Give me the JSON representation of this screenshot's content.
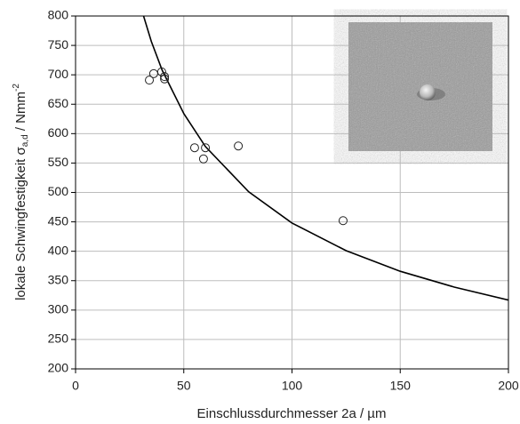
{
  "chart_data": {
    "type": "scatter",
    "xlabel": "Einschlussdurchmesser 2a / µm",
    "ylabel": {
      "text": "lokale Schwingfestigkeit σ",
      "sub": "a,d",
      "unit": " / Nmm",
      "sup": "-2"
    },
    "x": [
      34.1,
      36.1,
      39.8,
      41.1,
      41.1,
      55.0,
      60.0,
      59.1,
      75.2,
      123.6
    ],
    "values": [
      691,
      702,
      705,
      697,
      693,
      576,
      576,
      557,
      579,
      452
    ],
    "color": "#222222",
    "curve": {
      "x": [
        31,
        35,
        40,
        50,
        60,
        80,
        100,
        125,
        150,
        175,
        200
      ],
      "values": [
        805,
        757,
        708,
        634,
        578,
        501,
        448,
        401,
        366,
        339,
        317
      ],
      "color": "#000000"
    },
    "xlim": [
      0,
      200
    ],
    "xticks": [
      0,
      50,
      100,
      150,
      200
    ],
    "ylim": [
      200,
      800
    ],
    "yticks": [
      200,
      250,
      300,
      350,
      400,
      450,
      500,
      550,
      600,
      650,
      700,
      750,
      800
    ],
    "grid": true
  }
}
